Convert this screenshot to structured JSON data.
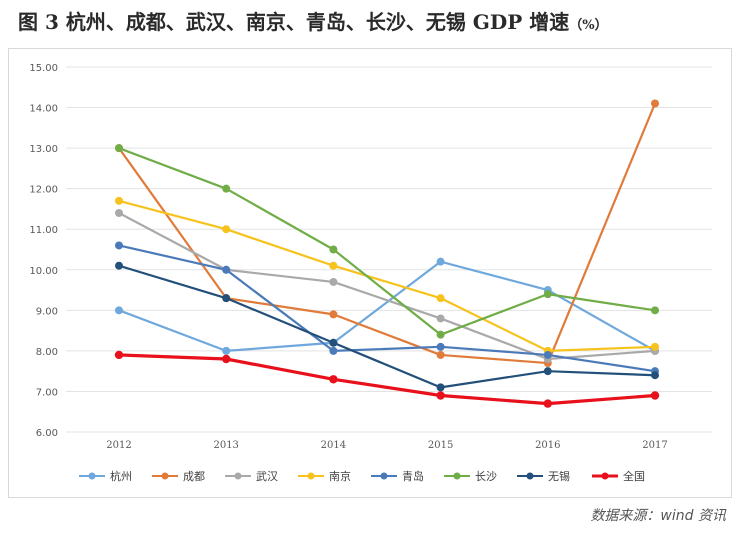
{
  "title": "图 3 杭州、成都、武汉、南京、青岛、长沙、无锡 GDP 增速",
  "title_unit": "（%）",
  "source": "数据来源：wind 资讯",
  "chart_data": {
    "type": "line",
    "x": [
      "2012",
      "2013",
      "2014",
      "2015",
      "2016",
      "2017"
    ],
    "ylim": [
      6.0,
      15.0
    ],
    "yticks": [
      "6.00",
      "7.00",
      "8.00",
      "9.00",
      "10.00",
      "11.00",
      "12.00",
      "13.00",
      "14.00",
      "15.00"
    ],
    "grid": true,
    "legend": "bottom",
    "series": [
      {
        "name": "杭州",
        "color": "#6fa8dc",
        "values": [
          9.0,
          8.0,
          8.2,
          10.2,
          9.5,
          8.0
        ]
      },
      {
        "name": "成都",
        "color": "#e07b39",
        "values": [
          13.0,
          9.3,
          8.9,
          7.9,
          7.7,
          14.1
        ]
      },
      {
        "name": "武汉",
        "color": "#a9a9a9",
        "values": [
          11.4,
          10.0,
          9.7,
          8.8,
          7.8,
          8.0
        ]
      },
      {
        "name": "南京",
        "color": "#f6c21b",
        "values": [
          11.7,
          11.0,
          10.1,
          9.3,
          8.0,
          8.1
        ]
      },
      {
        "name": "青岛",
        "color": "#4a7ab8",
        "values": [
          10.6,
          10.0,
          8.0,
          8.1,
          7.9,
          7.5
        ]
      },
      {
        "name": "长沙",
        "color": "#70ad47",
        "values": [
          13.0,
          12.0,
          10.5,
          8.4,
          9.4,
          9.0
        ]
      },
      {
        "name": "无锡",
        "color": "#23507a",
        "values": [
          10.1,
          9.3,
          8.2,
          7.1,
          7.5,
          7.4
        ]
      },
      {
        "name": "全国",
        "color": "#e8101b",
        "values": [
          7.9,
          7.8,
          7.3,
          6.9,
          6.7,
          6.9
        ]
      }
    ]
  }
}
